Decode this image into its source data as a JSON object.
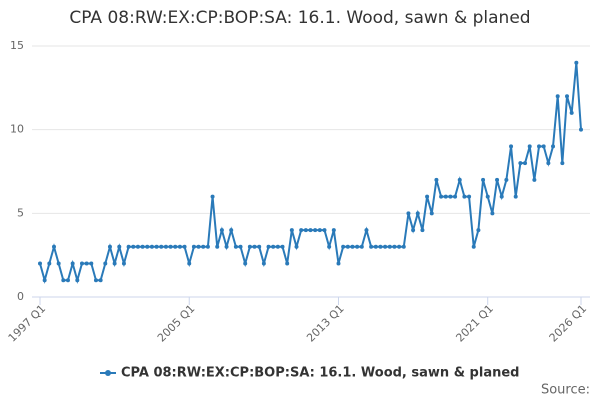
{
  "chart_data": {
    "type": "line",
    "title": "CPA 08:RW:EX:CP:BOP:SA: 16.1. Wood, sawn & planed",
    "source": "Source:",
    "categories": [
      "1997 Q1",
      null,
      null,
      null,
      null,
      null,
      null,
      null,
      null,
      null,
      null,
      null,
      null,
      null,
      null,
      null,
      null,
      null,
      null,
      null,
      null,
      null,
      null,
      null,
      null,
      null,
      null,
      null,
      null,
      null,
      null,
      null,
      "2005 Q1",
      null,
      null,
      null,
      null,
      null,
      null,
      null,
      null,
      null,
      null,
      null,
      null,
      null,
      null,
      null,
      null,
      null,
      null,
      null,
      null,
      null,
      null,
      null,
      null,
      null,
      null,
      null,
      null,
      null,
      null,
      null,
      "2013 Q1",
      null,
      null,
      null,
      null,
      null,
      null,
      null,
      null,
      null,
      null,
      null,
      null,
      null,
      null,
      null,
      null,
      null,
      null,
      null,
      null,
      null,
      null,
      null,
      null,
      null,
      null,
      null,
      null,
      null,
      null,
      null,
      "2021 Q1",
      null,
      null,
      null,
      null,
      null,
      null,
      null,
      null,
      null,
      null,
      null,
      null,
      null,
      null,
      null,
      null,
      null,
      null,
      null,
      "2026 Q1"
    ],
    "series": [
      {
        "name": "CPA 08:RW:EX:CP:BOP:SA: 16.1. Wood, sawn & planed",
        "color": "#2a7ab9",
        "values": [
          2,
          1,
          2,
          3,
          2,
          1,
          1,
          2,
          1,
          2,
          2,
          2,
          1,
          1,
          2,
          3,
          2,
          3,
          2,
          3,
          3,
          3,
          3,
          3,
          3,
          3,
          3,
          3,
          3,
          3,
          3,
          3,
          2,
          3,
          3,
          3,
          3,
          6,
          3,
          4,
          3,
          4,
          3,
          3,
          2,
          3,
          3,
          3,
          2,
          3,
          3,
          3,
          3,
          2,
          4,
          3,
          4,
          4,
          4,
          4,
          4,
          4,
          3,
          4,
          2,
          3,
          3,
          3,
          3,
          3,
          4,
          3,
          3,
          3,
          3,
          3,
          3,
          3,
          3,
          5,
          4,
          5,
          4,
          6,
          5,
          7,
          6,
          6,
          6,
          6,
          7,
          6,
          6,
          3,
          4,
          7,
          6,
          5,
          7,
          6,
          7,
          9,
          6,
          8,
          8,
          9,
          7,
          9,
          9,
          8,
          9,
          12,
          8,
          12,
          11,
          14,
          10
        ]
      }
    ],
    "ylim": [
      0,
      15
    ],
    "yticks": [
      0,
      5,
      10,
      15
    ],
    "grid": true,
    "legend": "bottom"
  }
}
